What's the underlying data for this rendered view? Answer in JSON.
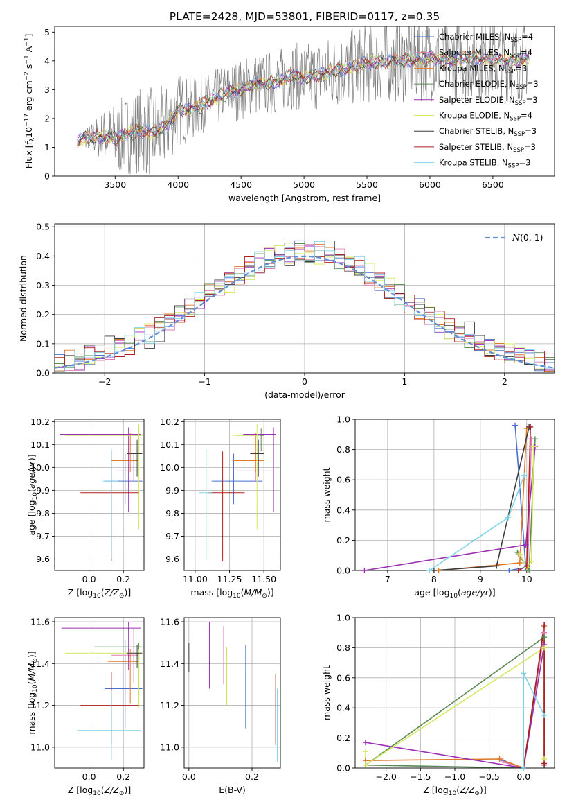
{
  "figure": {
    "title": "PLATE=2428, MJD=53801, FIBERID=0117, z=0.35",
    "colors": {
      "Chabrier MILES": "#4a6fd0",
      "Salpeter MILES": "#e07fb5",
      "Kroupa MILES": "#e0782a",
      "Chabrier ELODIE": "#5a8a56",
      "Salpeter ELODIE": "#9b2fb5",
      "Kroupa ELODIE": "#d4e85a",
      "Chabrier STELIB": "#3c3c3c",
      "Salpeter STELIB": "#b02020",
      "Kroupa STELIB": "#7fd4e8",
      "normal": "#5a8fd8"
    }
  },
  "chart_data": [
    {
      "id": "spectrum",
      "type": "line",
      "title": "PLATE=2428, MJD=53801, FIBERID=0117, z=0.35",
      "xlabel": "wavelength [Angstrom, rest frame]",
      "ylabel": "Flux [f_λ 10⁻¹⁷ erg cm⁻² s⁻¹ A⁻¹]",
      "xlim": [
        3020,
        6990
      ],
      "ylim": [
        0,
        5.2
      ],
      "xticks": [
        3500,
        4000,
        4500,
        5000,
        5500,
        6000,
        6500
      ],
      "yticks": [
        0,
        1,
        2,
        3,
        4,
        5
      ],
      "grid": false,
      "legend_position": "top-right",
      "legend": [
        {
          "label": "Chabrier MILES, N",
          "sub": "SSP",
          "tail": "=4"
        },
        {
          "label": "Salpeter MILES, N",
          "sub": "SSP",
          "tail": "=4"
        },
        {
          "label": "Kroupa MILES, N",
          "sub": "SSP",
          "tail": "=3"
        },
        {
          "label": "Chabrier ELODIE, N",
          "sub": "SSP",
          "tail": "=3"
        },
        {
          "label": "Salpeter ELODIE, N",
          "sub": "SSP",
          "tail": "=3"
        },
        {
          "label": "Kroupa ELODIE, N",
          "sub": "SSP",
          "tail": "=4"
        },
        {
          "label": "Chabrier STELIB, N",
          "sub": "SSP",
          "tail": "=3"
        },
        {
          "label": "Salpeter STELIB, N",
          "sub": "SSP",
          "tail": "=3"
        },
        {
          "label": "Kroupa STELIB, N",
          "sub": "SSP",
          "tail": "=3"
        }
      ],
      "continuum": {
        "x": [
          3200,
          3250,
          3300,
          3400,
          3500,
          3600,
          3700,
          3800,
          3900,
          4000,
          4100,
          4200,
          4300,
          4400,
          4500,
          4600,
          4700,
          4800,
          4900,
          5000,
          5100,
          5200,
          5300,
          5400,
          5500,
          5600,
          5700,
          5800,
          5900,
          6000,
          6100,
          6200,
          6300,
          6400,
          6500,
          6600,
          6700,
          6790
        ],
        "y": [
          1.15,
          1.35,
          1.3,
          1.4,
          1.3,
          1.45,
          1.6,
          1.5,
          1.7,
          2.3,
          2.3,
          2.5,
          2.7,
          2.9,
          3.0,
          3.2,
          3.2,
          3.3,
          3.5,
          3.4,
          3.5,
          3.6,
          3.7,
          3.8,
          3.9,
          3.95,
          4.0,
          4.0,
          4.05,
          4.1,
          4.0,
          4.05,
          4.1,
          4.1,
          4.05,
          4.0,
          4.0,
          4.1
        ]
      },
      "data_noise_amplitude": [
        {
          "x": 3200,
          "amp": 0.1
        },
        {
          "x": 3500,
          "amp": 1.3
        },
        {
          "x": 3800,
          "amp": 1.6
        },
        {
          "x": 4200,
          "amp": 1.0
        },
        {
          "x": 5000,
          "amp": 1.2
        },
        {
          "x": 5500,
          "amp": 1.4
        },
        {
          "x": 6000,
          "amp": 1.5
        },
        {
          "x": 6790,
          "amp": 1.4
        }
      ]
    },
    {
      "id": "residuals",
      "type": "histogram",
      "xlabel": "(data-model)/error",
      "ylabel": "Normed distribution",
      "xlim": [
        -2.5,
        2.5
      ],
      "ylim": [
        0,
        0.51
      ],
      "xticks": [
        -2,
        -1,
        0,
        1,
        2
      ],
      "yticks": [
        0.0,
        0.1,
        0.2,
        0.3,
        0.4,
        0.5
      ],
      "grid": true,
      "legend_position": "top-right",
      "legend": [
        {
          "label": "N(0, 1)",
          "style": "dashed"
        }
      ],
      "bin_edges": [
        -2.5,
        2.5
      ],
      "bin_width": 0.1
    },
    {
      "id": "age_vs_Z",
      "type": "errorbar",
      "xlabel": "Z [log10(Z/Z☉)]",
      "ylabel": "age [log10(age/yr)]",
      "xlim": [
        -0.2,
        0.32
      ],
      "ylim": [
        9.55,
        10.21
      ],
      "xticks": [
        0.0,
        0.2
      ],
      "yticks": [
        9.6,
        9.7,
        9.8,
        9.9,
        10.0,
        10.1,
        10.2
      ],
      "grid": true,
      "points": [
        {
          "series": "Chabrier MILES",
          "x": 0.21,
          "y": 9.94,
          "xerr": [
            0.12,
            0.1
          ],
          "yerr": [
            0.1,
            0.12
          ]
        },
        {
          "series": "Salpeter MILES",
          "x": 0.26,
          "y": 9.985,
          "xerr": [
            0.1,
            0.03
          ],
          "yerr": [
            0.05,
            0.08
          ]
        },
        {
          "series": "Kroupa MILES",
          "x": 0.24,
          "y": 10.03,
          "xerr": [
            0.11,
            0.05
          ],
          "yerr": [
            0.05,
            0.12
          ]
        },
        {
          "series": "Chabrier ELODIE",
          "x": 0.29,
          "y": 10.14,
          "xerr": [
            0.09,
            0.02
          ],
          "yerr": [
            0.07,
            0.03
          ]
        },
        {
          "series": "Salpeter ELODIE",
          "x": 0.23,
          "y": 10.145,
          "xerr": [
            0.4,
            0.07
          ],
          "yerr": [
            0.34,
            0.03
          ]
        },
        {
          "series": "Kroupa ELODIE",
          "x": 0.29,
          "y": 10.14,
          "xerr": [
            0.43,
            0.02
          ],
          "yerr": [
            0.41,
            0.05
          ]
        },
        {
          "series": "Chabrier STELIB",
          "x": 0.28,
          "y": 10.06,
          "xerr": [
            0.06,
            0.03
          ],
          "yerr": [
            0.1,
            0.06
          ]
        },
        {
          "series": "Salpeter STELIB",
          "x": 0.13,
          "y": 9.89,
          "xerr": [
            0.18,
            0.16
          ],
          "yerr": [
            0.3,
            0.18
          ]
        },
        {
          "series": "Kroupa STELIB",
          "x": 0.13,
          "y": 9.94,
          "xerr": [
            0.05,
            0.04
          ],
          "yerr": [
            0.34,
            0.14
          ]
        }
      ]
    },
    {
      "id": "age_vs_mass",
      "type": "errorbar",
      "xlabel": "mass [log10(M/M☉)]",
      "xlim": [
        10.92,
        11.62
      ],
      "ylim": [
        9.55,
        10.21
      ],
      "xticks": [
        11.0,
        11.25,
        11.5
      ],
      "yticks": [
        9.6,
        9.7,
        9.8,
        9.9,
        10.0,
        10.1,
        10.2
      ],
      "grid": true,
      "points": [
        {
          "series": "Chabrier MILES",
          "x": 11.28,
          "y": 9.94,
          "xerr": [
            0.16,
            0.21
          ],
          "yerr": [
            0.1,
            0.12
          ]
        },
        {
          "series": "Salpeter MILES",
          "x": 11.44,
          "y": 9.985,
          "xerr": [
            0.14,
            0.13
          ],
          "yerr": [
            0.05,
            0.08
          ]
        },
        {
          "series": "Kroupa MILES",
          "x": 11.44,
          "y": 10.03,
          "xerr": [
            0.17,
            0.06
          ],
          "yerr": [
            0.05,
            0.12
          ]
        },
        {
          "series": "Chabrier ELODIE",
          "x": 11.48,
          "y": 10.14,
          "xerr": [
            0.18,
            0.02
          ],
          "yerr": [
            0.07,
            0.03
          ]
        },
        {
          "series": "Salpeter ELODIE",
          "x": 11.57,
          "y": 10.145,
          "xerr": [
            0.22,
            0.02
          ],
          "yerr": [
            0.34,
            0.03
          ]
        },
        {
          "series": "Kroupa ELODIE",
          "x": 11.45,
          "y": 10.14,
          "xerr": [
            0.18,
            0.02
          ],
          "yerr": [
            0.41,
            0.05
          ]
        },
        {
          "series": "Chabrier STELIB",
          "x": 11.46,
          "y": 10.06,
          "xerr": [
            0.06,
            0.04
          ],
          "yerr": [
            0.1,
            0.06
          ]
        },
        {
          "series": "Salpeter STELIB",
          "x": 11.2,
          "y": 9.89,
          "xerr": [
            0.11,
            0.16
          ],
          "yerr": [
            0.3,
            0.18
          ]
        },
        {
          "series": "Kroupa STELIB",
          "x": 11.08,
          "y": 9.89,
          "xerr": [
            0.05,
            0.04
          ],
          "yerr": [
            0.29,
            0.19
          ]
        }
      ]
    },
    {
      "id": "weight_vs_age",
      "type": "line",
      "xlabel": "age [log10(age/yr)]",
      "ylabel": "mass weight",
      "xlim": [
        6.3,
        10.6
      ],
      "ylim": [
        0,
        1
      ],
      "xticks": [
        7,
        8,
        9,
        10
      ],
      "yticks": [
        0.0,
        0.2,
        0.4,
        0.6,
        0.8,
        1.0
      ],
      "grid": true,
      "series": [
        {
          "name": "Chabrier MILES",
          "x": [
            9.62,
            9.98,
            9.75
          ],
          "y": [
            0.0,
            0.02,
            0.96
          ]
        },
        {
          "name": "Salpeter MILES",
          "x": [
            9.82,
            10.02,
            10.1
          ],
          "y": [
            0.11,
            0.02,
            0.87
          ]
        },
        {
          "name": "Kroupa MILES",
          "x": [
            8.1,
            9.85,
            10.0
          ],
          "y": [
            0.0,
            0.05,
            0.94
          ]
        },
        {
          "name": "Chabrier ELODIE",
          "x": [
            9.8,
            10.05,
            10.18
          ],
          "y": [
            0.12,
            0.0,
            0.87
          ]
        },
        {
          "name": "Salpeter ELODIE",
          "x": [
            6.5,
            9.98,
            10.18
          ],
          "y": [
            0.0,
            0.17,
            0.82
          ]
        },
        {
          "name": "Kroupa ELODIE",
          "x": [
            9.85,
            10.0,
            10.1,
            10.15
          ],
          "y": [
            0.11,
            0.02,
            0.06,
            0.82
          ]
        },
        {
          "name": "Chabrier STELIB",
          "x": [
            8.0,
            9.35,
            10.05
          ],
          "y": [
            0.0,
            0.03,
            0.95
          ]
        },
        {
          "name": "Salpeter STELIB",
          "x": [
            9.82,
            10.0,
            10.08
          ],
          "y": [
            0.0,
            0.03,
            0.95
          ]
        },
        {
          "name": "Kroupa STELIB",
          "x": [
            7.9,
            9.6,
            9.95
          ],
          "y": [
            0.0,
            0.35,
            0.63
          ]
        }
      ]
    },
    {
      "id": "mass_vs_Z",
      "type": "errorbar",
      "xlabel": "Z [log10(Z/Z☉)]",
      "ylabel": "mass [log10(M/M☉)]",
      "xlim": [
        -0.2,
        0.32
      ],
      "ylim": [
        10.9,
        11.62
      ],
      "xticks": [
        0.0,
        0.2
      ],
      "yticks": [
        11.0,
        11.2,
        11.4,
        11.6
      ],
      "grid": true,
      "points": [
        {
          "series": "Chabrier MILES",
          "x": 0.21,
          "y": 11.28,
          "xerr": [
            0.12,
            0.1
          ],
          "yerr": [
            0.19,
            0.23
          ]
        },
        {
          "series": "Salpeter MILES",
          "x": 0.26,
          "y": 11.44,
          "xerr": [
            0.13,
            0.03
          ],
          "yerr": [
            0.13,
            0.13
          ]
        },
        {
          "series": "Kroupa MILES",
          "x": 0.24,
          "y": 11.41,
          "xerr": [
            0.13,
            0.05
          ],
          "yerr": [
            0.2,
            0.06
          ]
        },
        {
          "series": "Chabrier ELODIE",
          "x": 0.29,
          "y": 11.48,
          "xerr": [
            0.26,
            0.02
          ],
          "yerr": [
            0.23,
            0.02
          ]
        },
        {
          "series": "Salpeter ELODIE",
          "x": 0.23,
          "y": 11.57,
          "xerr": [
            0.39,
            0.07
          ],
          "yerr": [
            0.2,
            0.03
          ]
        },
        {
          "series": "Kroupa ELODIE",
          "x": 0.29,
          "y": 11.45,
          "xerr": [
            0.43,
            0.02
          ],
          "yerr": [
            0.26,
            0.02
          ]
        },
        {
          "series": "Chabrier STELIB",
          "x": 0.28,
          "y": 11.45,
          "xerr": [
            0.06,
            0.03
          ],
          "yerr": [
            0.07,
            0.04
          ]
        },
        {
          "series": "Salpeter STELIB",
          "x": 0.13,
          "y": 11.2,
          "xerr": [
            0.18,
            0.16
          ],
          "yerr": [
            0.19,
            0.16
          ]
        },
        {
          "series": "Kroupa STELIB",
          "x": 0.13,
          "y": 11.08,
          "xerr": [
            0.2,
            0.17
          ],
          "yerr": [
            0.14,
            0.19
          ]
        }
      ]
    },
    {
      "id": "mass_vs_ebv",
      "type": "errorbar",
      "xlabel": "E(B-V)",
      "xlim": [
        -0.015,
        0.29
      ],
      "ylim": [
        10.9,
        11.62
      ],
      "xticks": [
        0.0,
        0.2
      ],
      "yticks": [
        11.0,
        11.2,
        11.4,
        11.6
      ],
      "grid": true,
      "points": [
        {
          "series": "Chabrier MILES",
          "x": 0.18,
          "y": 11.28,
          "yerr": [
            0.19,
            0.21
          ]
        },
        {
          "series": "Salpeter MILES",
          "x": 0.11,
          "y": 11.44,
          "yerr": [
            0.14,
            0.14
          ]
        },
        {
          "series": "Kroupa MILES",
          "x": 0.12,
          "y": 11.35,
          "yerr": [
            0.15,
            0.08
          ]
        },
        {
          "series": "Chabrier ELODIE",
          "x": 0.12,
          "y": 11.41,
          "yerr": [
            0.2,
            0.06
          ]
        },
        {
          "series": "Salpeter ELODIE",
          "x": 0.065,
          "y": 11.44,
          "yerr": [
            0.16,
            0.16
          ]
        },
        {
          "series": "Kroupa ELODIE",
          "x": 0.12,
          "y": 11.38,
          "yerr": [
            0.18,
            0.1
          ]
        },
        {
          "series": "Chabrier STELIB",
          "x": 0.0,
          "y": 11.43,
          "yerr": [
            0.07,
            0.07
          ]
        },
        {
          "series": "Salpeter STELIB",
          "x": 0.275,
          "y": 11.18,
          "yerr": [
            0.17,
            0.17
          ]
        },
        {
          "series": "Kroupa STELIB",
          "x": 0.28,
          "y": 11.05,
          "yerr": [
            0.12,
            0.23
          ]
        }
      ]
    },
    {
      "id": "weight_vs_Z",
      "type": "line",
      "xlabel": "Z [log10(Z/Z☉)]",
      "ylabel": "mass weight",
      "xlim": [
        -2.45,
        0.45
      ],
      "ylim": [
        0,
        1
      ],
      "xticks": [
        -2.0,
        -1.5,
        -1.0,
        -0.5,
        0.0
      ],
      "yticks": [
        0.0,
        0.2,
        0.4,
        0.6,
        0.8,
        1.0
      ],
      "grid": true,
      "series": [
        {
          "name": "Chabrier MILES",
          "x": [
            -0.3,
            0.0,
            0.3
          ],
          "y": [
            0.05,
            0.0,
            0.94
          ]
        },
        {
          "name": "Salpeter MILES",
          "x": [
            -0.3,
            0.0,
            0.3
          ],
          "y": [
            0.04,
            0.0,
            0.9
          ]
        },
        {
          "name": "Kroupa MILES",
          "x": [
            -2.3,
            -0.35,
            0.0,
            0.3
          ],
          "y": [
            0.05,
            0.06,
            0.0,
            0.94
          ]
        },
        {
          "name": "Chabrier ELODIE",
          "x": [
            0.0,
            -2.3,
            0.3
          ],
          "y": [
            0.0,
            0.02,
            0.87
          ]
        },
        {
          "name": "Salpeter ELODIE",
          "x": [
            -2.3,
            0.0,
            0.3
          ],
          "y": [
            0.17,
            0.0,
            0.82
          ]
        },
        {
          "name": "Kroupa ELODIE",
          "x": [
            -2.3,
            -2.3,
            0.3,
            0.3
          ],
          "y": [
            0.11,
            0.02,
            0.8,
            0.06
          ]
        },
        {
          "name": "Chabrier STELIB",
          "x": [
            0.0,
            0.3,
            0.3
          ],
          "y": [
            0.0,
            0.95,
            0.02
          ]
        },
        {
          "name": "Salpeter STELIB",
          "x": [
            0.0,
            0.3,
            0.3
          ],
          "y": [
            0.0,
            0.95,
            0.03
          ]
        },
        {
          "name": "Kroupa STELIB",
          "x": [
            0.0,
            0.0,
            0.3
          ],
          "y": [
            0.0,
            0.63,
            0.35
          ]
        }
      ]
    }
  ]
}
